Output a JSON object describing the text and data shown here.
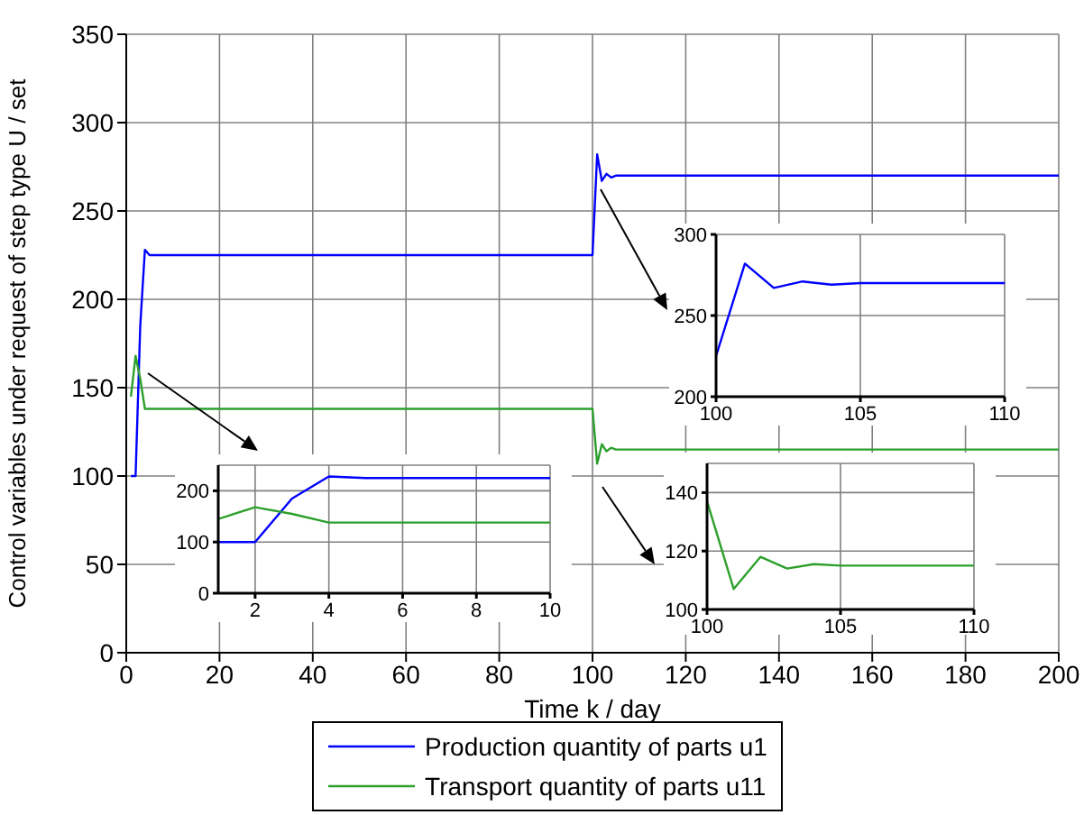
{
  "chart_data": [
    {
      "type": "line",
      "xlabel": "Time k / day",
      "ylabel": "Control variables under request of step type U / set",
      "xlim": [
        0,
        200
      ],
      "xticks": [
        0,
        20,
        40,
        60,
        80,
        100,
        120,
        140,
        160,
        180,
        200
      ],
      "ylim": [
        0,
        350
      ],
      "yticks": [
        0,
        50,
        100,
        150,
        200,
        250,
        300,
        350
      ],
      "grid": true,
      "legend": "bottom",
      "series": [
        {
          "name": "Production quantity of parts u1",
          "color": "#0000ff",
          "x": [
            1,
            2,
            3,
            4,
            5,
            6,
            100,
            101,
            102,
            103,
            104,
            105,
            200
          ],
          "values": [
            100,
            100,
            185,
            228,
            225,
            225,
            225,
            282,
            267,
            271,
            269,
            270,
            270
          ]
        },
        {
          "name": "Transport quantity of parts u11",
          "color": "#2ca02c",
          "x": [
            1,
            2,
            3,
            4,
            5,
            6,
            100,
            101,
            102,
            103,
            104,
            105,
            200
          ],
          "values": [
            145,
            168,
            155,
            138,
            138,
            138,
            138,
            107,
            118,
            114,
            116,
            115,
            115
          ]
        }
      ]
    },
    {
      "type": "line",
      "xlim": [
        1,
        10
      ],
      "xticks": [
        2,
        4,
        6,
        8,
        10
      ],
      "ylim": [
        0,
        250
      ],
      "yticks": [
        0,
        100,
        200
      ],
      "grid": true,
      "series": [
        {
          "color": "#0000ff",
          "x": [
            1,
            2,
            3,
            4,
            5,
            6,
            7,
            8,
            9,
            10
          ],
          "values": [
            100,
            100,
            185,
            228,
            225,
            225,
            225,
            225,
            225,
            225
          ]
        },
        {
          "color": "#2ca02c",
          "x": [
            1,
            2,
            3,
            4,
            5,
            6,
            7,
            8,
            9,
            10
          ],
          "values": [
            145,
            168,
            155,
            138,
            138,
            138,
            138,
            138,
            138,
            138
          ]
        }
      ]
    },
    {
      "type": "line",
      "xlim": [
        100,
        110
      ],
      "xticks": [
        100,
        105,
        110
      ],
      "ylim": [
        200,
        300
      ],
      "yticks": [
        200,
        250,
        300
      ],
      "grid": true,
      "series": [
        {
          "color": "#0000ff",
          "x": [
            100,
            101,
            102,
            103,
            104,
            105,
            106,
            107,
            108,
            109,
            110
          ],
          "values": [
            225,
            282,
            267,
            271,
            269,
            270,
            270,
            270,
            270,
            270,
            270
          ]
        }
      ]
    },
    {
      "type": "line",
      "xlim": [
        100,
        110
      ],
      "xticks": [
        100,
        105,
        110
      ],
      "ylim": [
        100,
        150
      ],
      "yticks": [
        100,
        120,
        140
      ],
      "grid": true,
      "series": [
        {
          "color": "#2ca02c",
          "x": [
            100,
            101,
            102,
            103,
            104,
            105,
            106,
            107,
            108,
            109,
            110
          ],
          "values": [
            137,
            107,
            118,
            114,
            115.5,
            115,
            115,
            115,
            115,
            115,
            115
          ]
        }
      ]
    }
  ]
}
